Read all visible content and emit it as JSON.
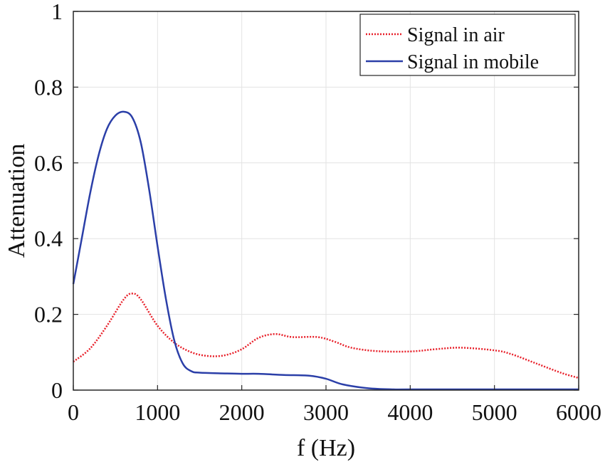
{
  "chart_data": {
    "type": "line",
    "title": "",
    "xlabel": "f (Hz)",
    "ylabel": "Attenuation",
    "xlim": [
      0,
      6000
    ],
    "ylim": [
      0,
      1
    ],
    "xticks": [
      "0",
      "1000",
      "2000",
      "3000",
      "4000",
      "5000",
      "6000"
    ],
    "yticks": [
      "0",
      "0.2",
      "0.4",
      "0.6",
      "0.8",
      "1"
    ],
    "grid": true,
    "legend_position": "top-right",
    "series": [
      {
        "name": "Signal in air",
        "color": "#e8202a",
        "style": "dotted",
        "x": [
          0,
          200,
          400,
          600,
          700,
          800,
          1000,
          1200,
          1400,
          1600,
          1800,
          2000,
          2200,
          2400,
          2600,
          2900,
          3100,
          3300,
          3600,
          4000,
          4300,
          4600,
          5000,
          5200,
          5500,
          5800,
          6000
        ],
        "y": [
          0.075,
          0.11,
          0.17,
          0.24,
          0.255,
          0.24,
          0.17,
          0.125,
          0.1,
          0.09,
          0.092,
          0.108,
          0.138,
          0.148,
          0.14,
          0.14,
          0.128,
          0.112,
          0.103,
          0.102,
          0.108,
          0.112,
          0.105,
          0.095,
          0.07,
          0.045,
          0.032
        ]
      },
      {
        "name": "Signal in mobile",
        "color": "#2b3fa8",
        "style": "solid",
        "x": [
          0,
          100,
          200,
          300,
          400,
          500,
          600,
          700,
          800,
          900,
          1000,
          1100,
          1200,
          1300,
          1400,
          1500,
          1800,
          2000,
          2200,
          2500,
          2800,
          3000,
          3200,
          3500,
          3800,
          4000,
          5000,
          6000
        ],
        "y": [
          0.28,
          0.4,
          0.52,
          0.62,
          0.69,
          0.725,
          0.735,
          0.72,
          0.655,
          0.53,
          0.38,
          0.24,
          0.13,
          0.07,
          0.05,
          0.046,
          0.044,
          0.043,
          0.043,
          0.04,
          0.038,
          0.03,
          0.015,
          0.005,
          0.001,
          0,
          0,
          0
        ]
      }
    ]
  }
}
